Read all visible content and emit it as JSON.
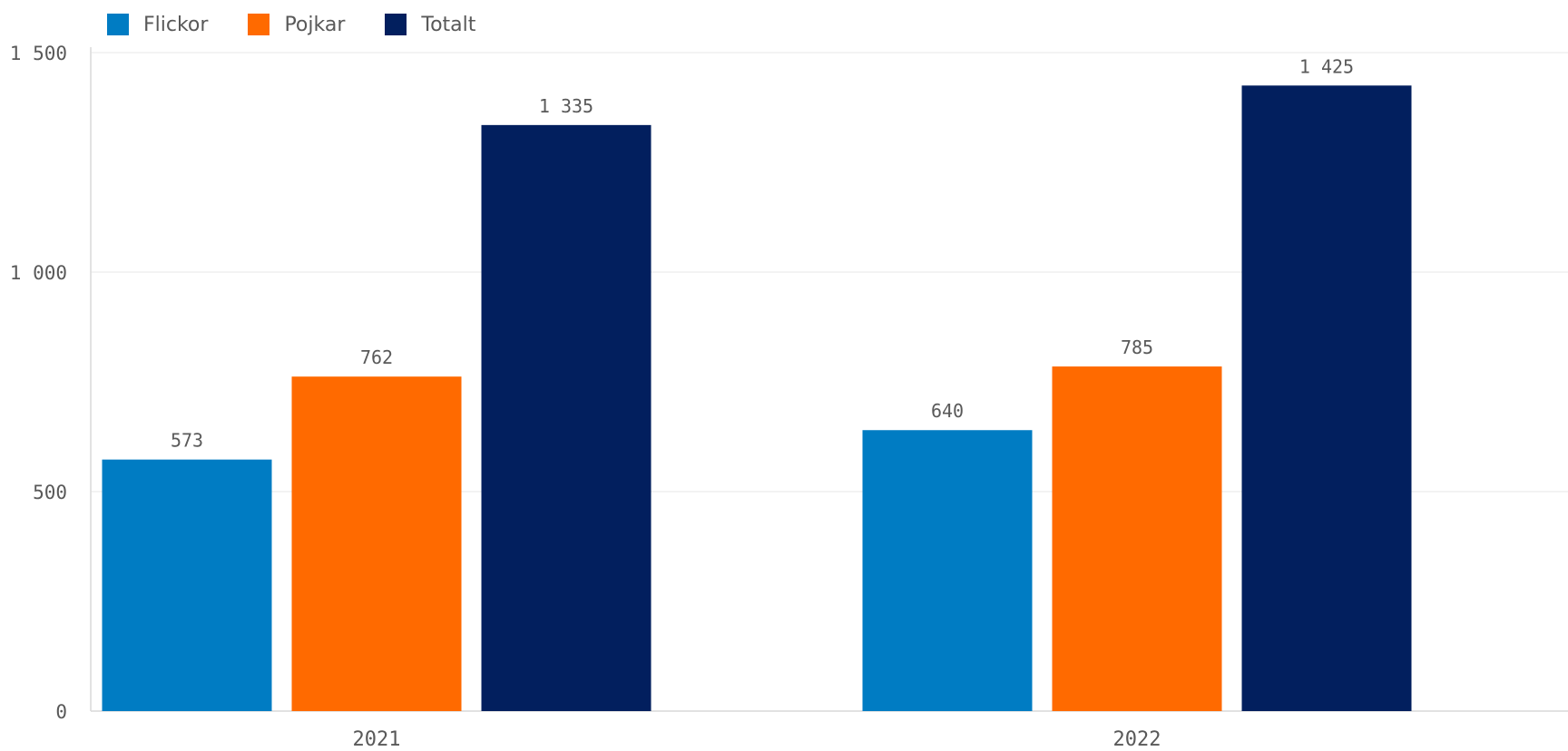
{
  "chart_data": {
    "type": "bar",
    "categories": [
      "2021",
      "2022"
    ],
    "series": [
      {
        "name": "Flickor",
        "values": [
          573,
          640
        ],
        "value_labels": [
          "573",
          "640"
        ],
        "color": "#007cc3"
      },
      {
        "name": "Pojkar",
        "values": [
          762,
          785
        ],
        "value_labels": [
          "762",
          "785"
        ],
        "color": "#ff6a00"
      },
      {
        "name": "Totalt",
        "values": [
          1335,
          1425
        ],
        "value_labels": [
          "1 335",
          "1 425"
        ],
        "color": "#021f5e"
      }
    ],
    "title": "",
    "xlabel": "",
    "ylabel": "",
    "ylim": [
      0,
      1500
    ],
    "yticks": [
      0,
      500,
      1000,
      1500
    ],
    "ytick_labels": [
      "0",
      "500",
      "1 000",
      "1 500"
    ],
    "grid": true,
    "legend_position": "top-left"
  }
}
